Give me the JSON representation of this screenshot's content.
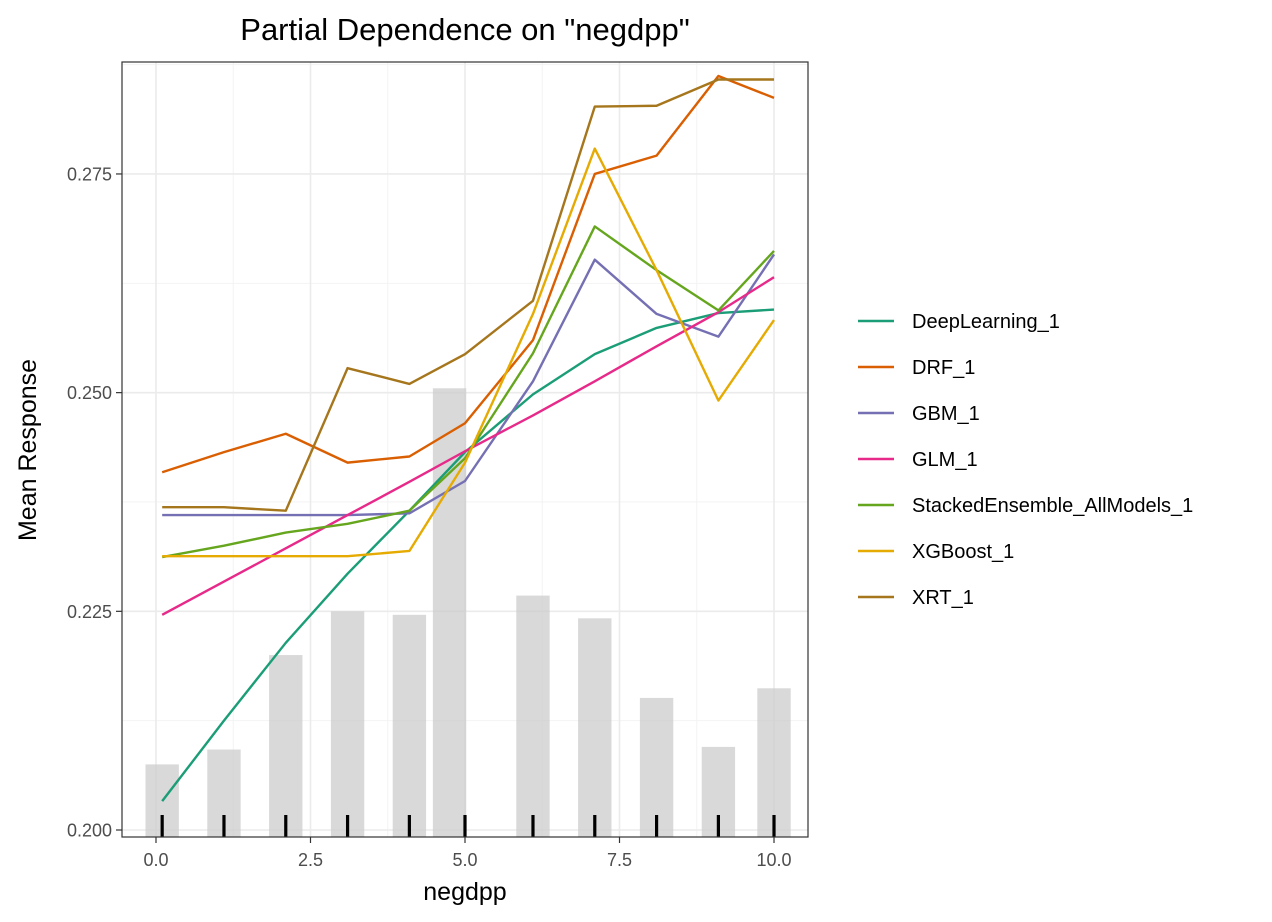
{
  "chart_data": {
    "type": "line",
    "title": "Partial Dependence on \"negdpp\"",
    "xlabel": "negdpp",
    "ylabel": "Mean Response",
    "xlim": [
      -0.55,
      10.55
    ],
    "ylim": [
      0.1992,
      0.2878
    ],
    "x_ticks": [
      0.0,
      2.5,
      5.0,
      7.5,
      10.0
    ],
    "x_tick_labels": [
      "0.0",
      "2.5",
      "5.0",
      "7.5",
      "10.0"
    ],
    "y_ticks": [
      0.2,
      0.225,
      0.25,
      0.275
    ],
    "y_tick_labels": [
      "0.200",
      "0.225",
      "0.250",
      "0.275"
    ],
    "grid": true,
    "legend_position": "right",
    "x": [
      0.1,
      1.1,
      2.1,
      3.1,
      4.1,
      5.0,
      6.1,
      7.1,
      8.1,
      9.1,
      10.0
    ],
    "series": [
      {
        "name": "DeepLearning_1",
        "color": "#1b9e77",
        "values": [
          0.2033,
          0.2125,
          0.2214,
          0.2293,
          0.2365,
          0.2432,
          0.2498,
          0.2544,
          0.2574,
          0.2591,
          0.2595
        ]
      },
      {
        "name": "DRF_1",
        "color": "#d95f02",
        "values": [
          0.2409,
          0.2432,
          0.2453,
          0.242,
          0.2427,
          0.2465,
          0.256,
          0.275,
          0.2771,
          0.2862,
          0.2837
        ]
      },
      {
        "name": "GBM_1",
        "color": "#7570b3",
        "values": [
          0.236,
          0.236,
          0.236,
          0.236,
          0.2362,
          0.2399,
          0.2513,
          0.2652,
          0.259,
          0.2564,
          0.2658
        ]
      },
      {
        "name": "GLM_1",
        "color": "#e7298a",
        "values": [
          0.2246,
          0.2284,
          0.2322,
          0.236,
          0.2398,
          0.2433,
          0.2474,
          0.2513,
          0.2553,
          0.2592,
          0.2632
        ]
      },
      {
        "name": "StackedEnsemble_AllModels_1",
        "color": "#66a61e",
        "values": [
          0.2312,
          0.2325,
          0.234,
          0.235,
          0.2365,
          0.2425,
          0.2545,
          0.269,
          0.264,
          0.2594,
          0.2662
        ]
      },
      {
        "name": "XGBoost_1",
        "color": "#e6ab02",
        "values": [
          0.2313,
          0.2313,
          0.2313,
          0.2313,
          0.2319,
          0.242,
          0.259,
          0.2779,
          0.264,
          0.2491,
          0.2583
        ]
      },
      {
        "name": "XRT_1",
        "color": "#a6761d",
        "values": [
          0.2369,
          0.2369,
          0.2365,
          0.2528,
          0.251,
          0.2544,
          0.2605,
          0.2827,
          0.2828,
          0.2858,
          0.2858
        ]
      }
    ],
    "histogram": {
      "x": [
        0.1,
        1.1,
        2.1,
        3.1,
        4.1,
        4.75,
        6.1,
        7.1,
        8.1,
        9.1,
        10.0
      ],
      "values": [
        0.2075,
        0.2092,
        0.22,
        0.225,
        0.2246,
        0.2505,
        0.2268,
        0.2242,
        0.2151,
        0.2095,
        0.2162
      ]
    },
    "rug_x": [
      0.1,
      1.1,
      2.1,
      3.1,
      4.1,
      5.0,
      6.1,
      7.1,
      8.1,
      9.1,
      10.0
    ]
  }
}
